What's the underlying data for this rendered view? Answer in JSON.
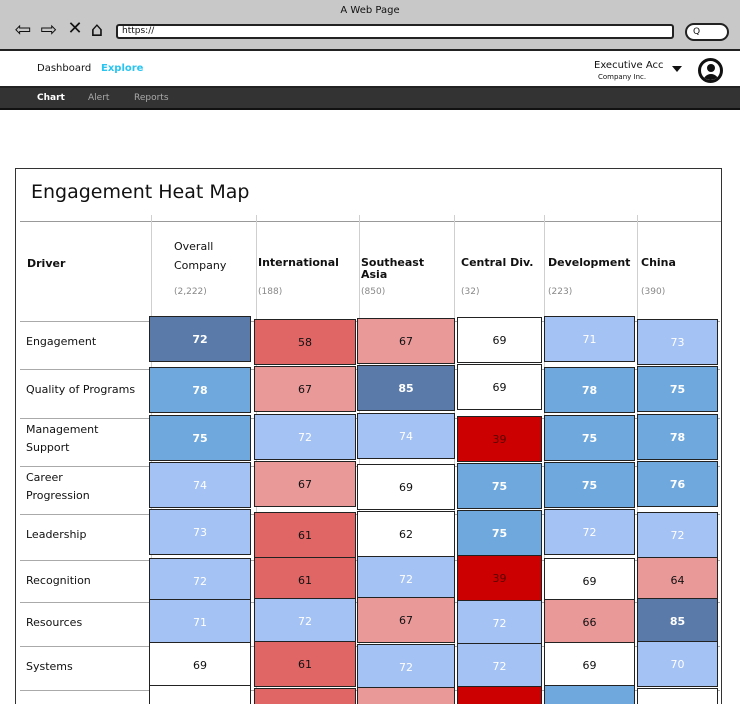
{
  "browser": {
    "title": "A Web Page",
    "url": "https://",
    "search_glyph": "Q"
  },
  "header": {
    "nav": [
      "Dashboard",
      "Explore"
    ],
    "account_name": "Executive Acc",
    "account_company": "Company Inc."
  },
  "subnav": [
    "Chart",
    "Alert",
    "Reports"
  ],
  "panel": {
    "title": "Engagement Heat Map",
    "driver_header": "Driver"
  },
  "colors": {
    "white": "#ffffff",
    "light_blue": "#a4c2f4",
    "mid_blue": "#6fa8dc",
    "dark_blue": "#5a7baa",
    "light_red": "#ea9999",
    "mid_red": "#e06666",
    "dark_red": "#cc0000"
  },
  "columns": [
    {
      "lines": [
        "Overall",
        "Company"
      ],
      "count": "(2,222)",
      "bold": false
    },
    {
      "lines": [
        "International"
      ],
      "count": "(188)",
      "bold": true
    },
    {
      "lines": [
        "Southeast",
        "Asia"
      ],
      "count": "(850)",
      "bold": true
    },
    {
      "lines": [
        "Central Div."
      ],
      "count": "(32)",
      "bold": true
    },
    {
      "lines": [
        "Development"
      ],
      "count": "(223)",
      "bold": true
    },
    {
      "lines": [
        "China"
      ],
      "count": "(390)",
      "bold": true
    }
  ],
  "rows": [
    {
      "label": [
        "Engagement"
      ],
      "values": [
        "72",
        "58",
        "67",
        "69",
        "71",
        "73"
      ],
      "colors": [
        "dark_blue",
        "mid_red",
        "light_red",
        "white",
        "light_blue",
        "light_blue"
      ]
    },
    {
      "label": [
        "Quality of Programs"
      ],
      "values": [
        "78",
        "67",
        "85",
        "69",
        "78",
        "75"
      ],
      "colors": [
        "mid_blue",
        "light_red",
        "dark_blue",
        "white",
        "mid_blue",
        "mid_blue"
      ]
    },
    {
      "label": [
        "Management",
        "Support"
      ],
      "values": [
        "75",
        "72",
        "74",
        "39",
        "75",
        "78"
      ],
      "colors": [
        "mid_blue",
        "light_blue",
        "light_blue",
        "dark_red",
        "mid_blue",
        "mid_blue"
      ]
    },
    {
      "label": [
        "Career",
        "Progression"
      ],
      "values": [
        "74",
        "67",
        "69",
        "75",
        "75",
        "76"
      ],
      "colors": [
        "light_blue",
        "light_red",
        "white",
        "mid_blue",
        "mid_blue",
        "mid_blue"
      ]
    },
    {
      "label": [
        "Leadership"
      ],
      "values": [
        "73",
        "61",
        "62",
        "75",
        "72",
        "72"
      ],
      "colors": [
        "light_blue",
        "mid_red",
        "white",
        "mid_blue",
        "light_blue",
        "light_blue"
      ]
    },
    {
      "label": [
        "Recognition"
      ],
      "values": [
        "72",
        "61",
        "72",
        "39",
        "69",
        "64"
      ],
      "colors": [
        "light_blue",
        "mid_red",
        "light_blue",
        "dark_red",
        "white",
        "light_red"
      ]
    },
    {
      "label": [
        "Resources"
      ],
      "values": [
        "71",
        "72",
        "67",
        "72",
        "66",
        "85"
      ],
      "colors": [
        "light_blue",
        "light_blue",
        "light_red",
        "light_blue",
        "light_red",
        "dark_blue"
      ]
    },
    {
      "label": [
        "Systems"
      ],
      "values": [
        "69",
        "61",
        "72",
        "72",
        "69",
        "70"
      ],
      "colors": [
        "white",
        "mid_red",
        "light_blue",
        "light_blue",
        "white",
        "light_blue"
      ]
    },
    {
      "label": [
        ""
      ],
      "values": [
        "",
        "",
        "",
        "",
        "",
        ""
      ],
      "colors": [
        "white",
        "mid_red",
        "light_red",
        "dark_red",
        "mid_blue",
        "white"
      ]
    }
  ]
}
